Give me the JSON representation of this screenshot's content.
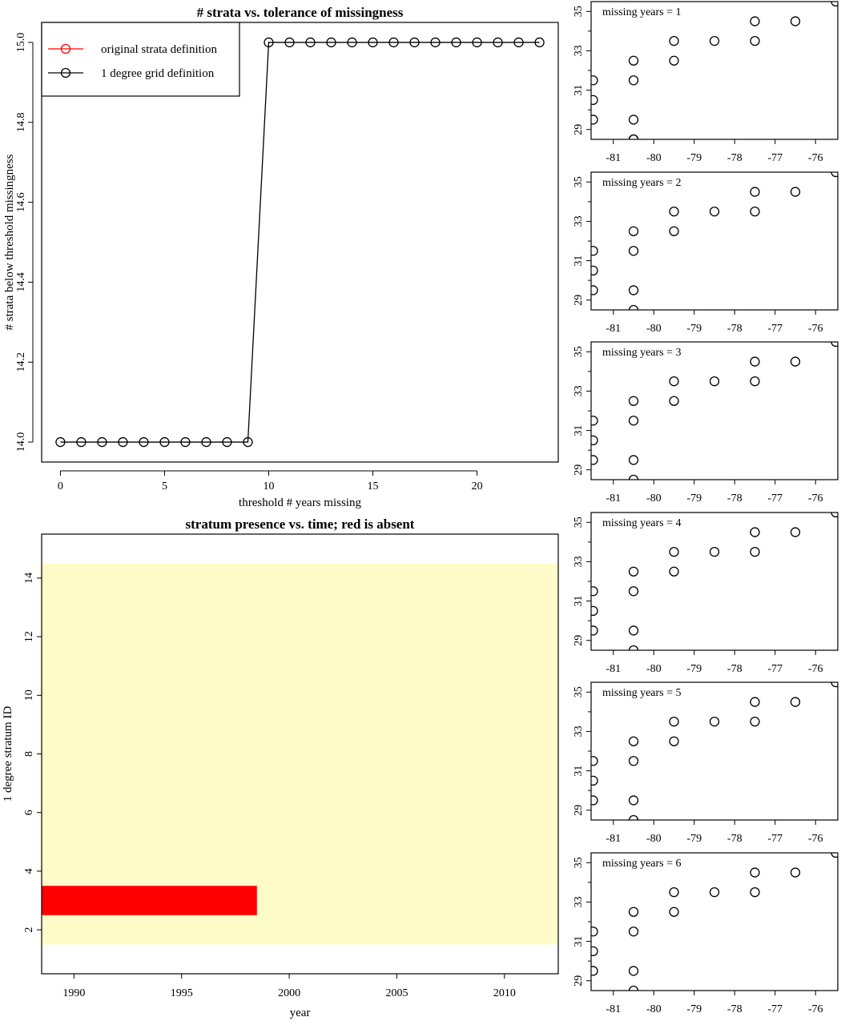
{
  "chart_data": [
    {
      "type": "line",
      "title": "# strata vs. tolerance of missingness",
      "xlabel": "threshold # years missing",
      "ylabel": "# strata below threshold missingness",
      "xlim": [
        -0.9,
        23.9
      ],
      "ylim": [
        13.95,
        15.05
      ],
      "x_ticks": [
        0,
        5,
        10,
        15,
        20
      ],
      "y_ticks": [
        14.0,
        14.2,
        14.4,
        14.6,
        14.8,
        15.0
      ],
      "legend_position": "top-left",
      "series": [
        {
          "name": "original strata definition",
          "color": "#ff0000",
          "x": [],
          "y": []
        },
        {
          "name": "1 degree grid definition",
          "color": "#000000",
          "x": [
            0,
            1,
            2,
            3,
            4,
            5,
            6,
            7,
            8,
            9,
            10,
            11,
            12,
            13,
            14,
            15,
            16,
            17,
            18,
            19,
            20,
            21,
            22,
            23
          ],
          "y": [
            14,
            14,
            14,
            14,
            14,
            14,
            14,
            14,
            14,
            14,
            15,
            15,
            15,
            15,
            15,
            15,
            15,
            15,
            15,
            15,
            15,
            15,
            15,
            15
          ]
        }
      ]
    },
    {
      "type": "heatmap",
      "title": "stratum presence vs. time; red is absent",
      "xlabel": "year",
      "ylabel": "1 degree stratum ID",
      "xlim": [
        1988.5,
        2012.5
      ],
      "ylim": [
        0.5,
        15.5
      ],
      "x_ticks": [
        1990,
        1995,
        2000,
        2005,
        2010
      ],
      "y_ticks": [
        2,
        4,
        6,
        8,
        10,
        12,
        14
      ],
      "present_color": "#fffcc9",
      "absent_color": "#ff0000",
      "filled_rows": [
        1.5,
        14.5
      ],
      "absent_cells": [
        {
          "stratum": 3,
          "year_from": 1988.5,
          "year_to": 1998.5
        }
      ]
    },
    {
      "type": "scatter",
      "panel_label": "missing years = 1",
      "xlim": [
        -81.55,
        -75.45
      ],
      "ylim": [
        28.5,
        35.5
      ],
      "x_ticks": [
        -81,
        -80,
        -79,
        -78,
        -77,
        -76
      ],
      "y_ticks": [
        29,
        31,
        33,
        35
      ],
      "x": [
        -81.5,
        -81.5,
        -81.5,
        -80.5,
        -80.5,
        -80.5,
        -80.5,
        -79.5,
        -79.5,
        -78.5,
        -77.5,
        -77.5,
        -76.5,
        -75.5,
        -80.5
      ],
      "y": [
        29.5,
        30.5,
        31.5,
        29.5,
        31.5,
        32.5,
        28.5,
        32.5,
        33.5,
        33.5,
        33.5,
        34.5,
        34.5,
        35.5,
        28.5
      ]
    },
    {
      "type": "scatter",
      "panel_label": "missing years = 2",
      "xlim": [
        -81.55,
        -75.45
      ],
      "ylim": [
        28.5,
        35.5
      ],
      "x_ticks": [
        -81,
        -80,
        -79,
        -78,
        -77,
        -76
      ],
      "y_ticks": [
        29,
        31,
        33,
        35
      ],
      "x": [
        -81.5,
        -81.5,
        -81.5,
        -80.5,
        -80.5,
        -80.5,
        -80.5,
        -79.5,
        -79.5,
        -78.5,
        -77.5,
        -77.5,
        -76.5,
        -75.5
      ],
      "y": [
        29.5,
        30.5,
        31.5,
        29.5,
        31.5,
        32.5,
        28.5,
        32.5,
        33.5,
        33.5,
        33.5,
        34.5,
        34.5,
        35.5
      ]
    },
    {
      "type": "scatter",
      "panel_label": "missing years = 3",
      "xlim": [
        -81.55,
        -75.45
      ],
      "ylim": [
        28.5,
        35.5
      ],
      "x_ticks": [
        -81,
        -80,
        -79,
        -78,
        -77,
        -76
      ],
      "y_ticks": [
        29,
        31,
        33,
        35
      ],
      "x": [
        -81.5,
        -81.5,
        -81.5,
        -80.5,
        -80.5,
        -80.5,
        -80.5,
        -79.5,
        -79.5,
        -78.5,
        -77.5,
        -77.5,
        -76.5,
        -75.5
      ],
      "y": [
        29.5,
        30.5,
        31.5,
        29.5,
        31.5,
        32.5,
        28.5,
        32.5,
        33.5,
        33.5,
        33.5,
        34.5,
        34.5,
        35.5
      ]
    },
    {
      "type": "scatter",
      "panel_label": "missing years = 4",
      "xlim": [
        -81.55,
        -75.45
      ],
      "ylim": [
        28.5,
        35.5
      ],
      "x_ticks": [
        -81,
        -80,
        -79,
        -78,
        -77,
        -76
      ],
      "y_ticks": [
        29,
        31,
        33,
        35
      ],
      "x": [
        -81.5,
        -81.5,
        -81.5,
        -80.5,
        -80.5,
        -80.5,
        -80.5,
        -79.5,
        -79.5,
        -78.5,
        -77.5,
        -77.5,
        -76.5,
        -75.5
      ],
      "y": [
        29.5,
        30.5,
        31.5,
        29.5,
        31.5,
        32.5,
        28.5,
        32.5,
        33.5,
        33.5,
        33.5,
        34.5,
        34.5,
        35.5
      ]
    },
    {
      "type": "scatter",
      "panel_label": "missing years = 5",
      "xlim": [
        -81.55,
        -75.45
      ],
      "ylim": [
        28.5,
        35.5
      ],
      "x_ticks": [
        -81,
        -80,
        -79,
        -78,
        -77,
        -76
      ],
      "y_ticks": [
        29,
        31,
        33,
        35
      ],
      "x": [
        -81.5,
        -81.5,
        -81.5,
        -80.5,
        -80.5,
        -80.5,
        -80.5,
        -79.5,
        -79.5,
        -78.5,
        -77.5,
        -77.5,
        -76.5,
        -75.5
      ],
      "y": [
        29.5,
        30.5,
        31.5,
        29.5,
        31.5,
        32.5,
        28.5,
        32.5,
        33.5,
        33.5,
        33.5,
        34.5,
        34.5,
        35.5
      ]
    },
    {
      "type": "scatter",
      "panel_label": "missing years = 6",
      "xlim": [
        -81.55,
        -75.45
      ],
      "ylim": [
        28.5,
        35.5
      ],
      "x_ticks": [
        -81,
        -80,
        -79,
        -78,
        -77,
        -76
      ],
      "y_ticks": [
        29,
        31,
        33,
        35
      ],
      "x": [
        -81.5,
        -81.5,
        -81.5,
        -80.5,
        -80.5,
        -80.5,
        -80.5,
        -79.5,
        -79.5,
        -78.5,
        -77.5,
        -77.5,
        -76.5,
        -75.5
      ],
      "y": [
        29.5,
        30.5,
        31.5,
        29.5,
        31.5,
        32.5,
        28.5,
        32.5,
        33.5,
        33.5,
        33.5,
        34.5,
        34.5,
        35.5
      ]
    }
  ]
}
